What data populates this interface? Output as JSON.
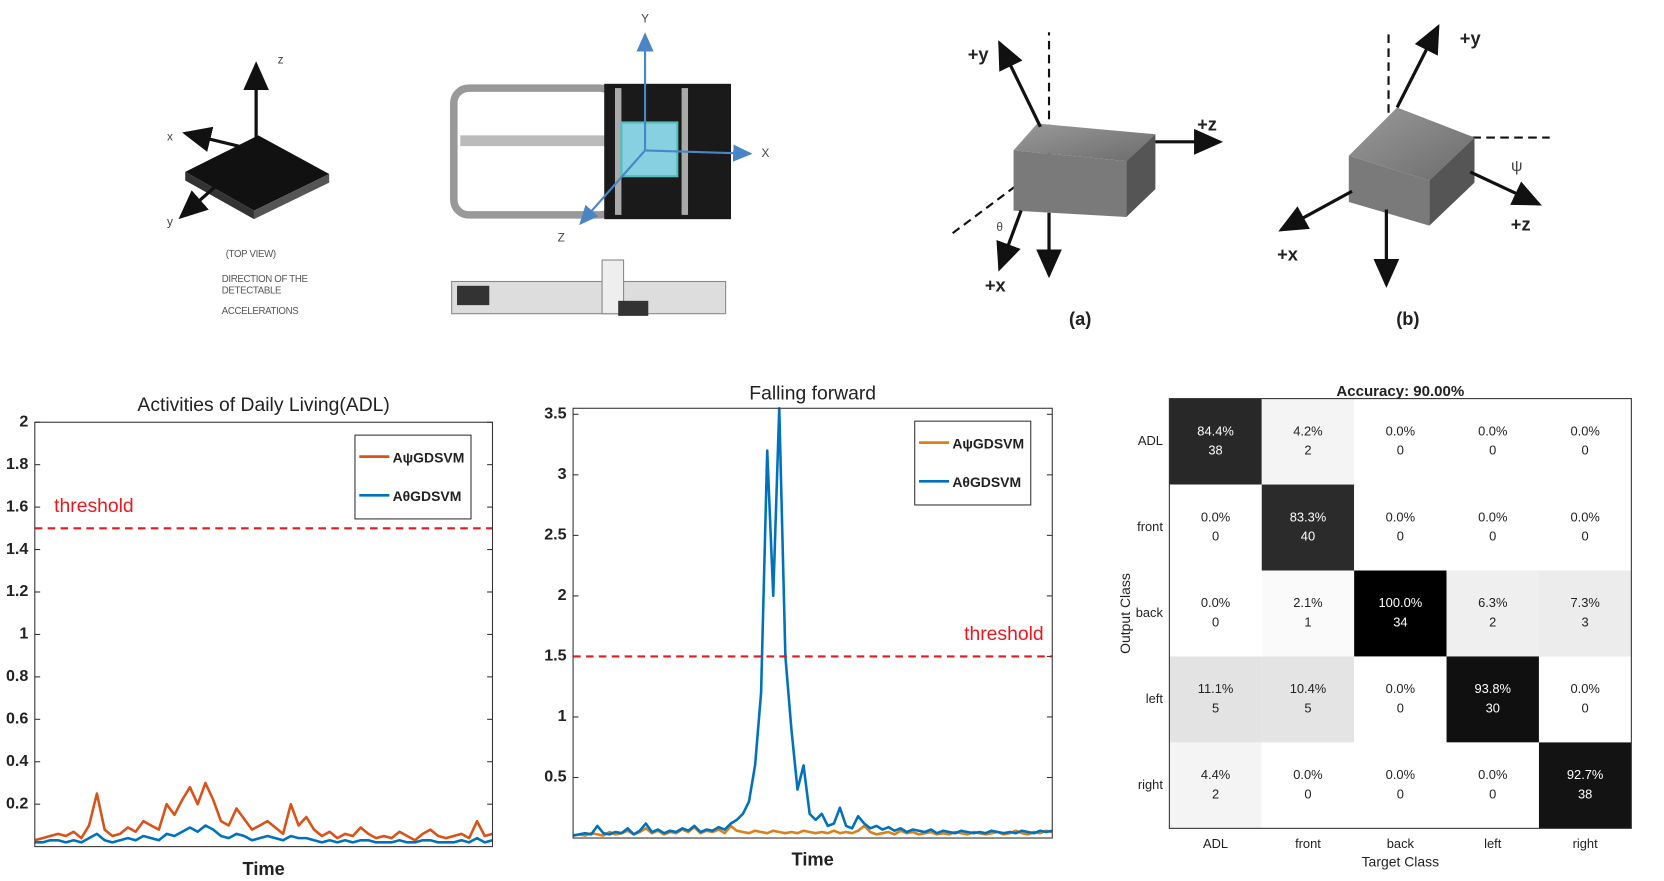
{
  "figures": {
    "chip": {
      "axes": [
        "z",
        "x",
        "y"
      ],
      "caption": [
        "(TOP VIEW)",
        "DIRECTION OF THE",
        "DETECTABLE",
        "ACCELERATIONS"
      ]
    },
    "buckle": {
      "axes": [
        "Y",
        "X",
        "Z"
      ]
    },
    "a": {
      "axes": [
        "+y",
        "+z",
        "+x"
      ],
      "angle": "θ",
      "label": "(a)"
    },
    "b": {
      "axes": [
        "+y",
        "+z",
        "+x"
      ],
      "angle": "ψ",
      "label": "(b)"
    }
  },
  "chart_data": [
    {
      "type": "line",
      "title": "Activities of Daily Living(ADL)",
      "xlabel": "Time",
      "ylim": [
        0,
        2
      ],
      "yticks": [
        0.2,
        0.4,
        0.6,
        0.8,
        1,
        1.2,
        1.4,
        1.6,
        1.8,
        2
      ],
      "threshold": {
        "value": 1.5,
        "label": "threshold"
      },
      "threshold_color": "#e8191d",
      "legend": "upper right",
      "grid": false,
      "series": [
        {
          "name": "AψGDSVM",
          "color": "#d95319",
          "values": [
            0.03,
            0.04,
            0.05,
            0.06,
            0.05,
            0.07,
            0.04,
            0.1,
            0.25,
            0.08,
            0.05,
            0.06,
            0.09,
            0.07,
            0.12,
            0.1,
            0.08,
            0.2,
            0.15,
            0.22,
            0.28,
            0.2,
            0.3,
            0.22,
            0.12,
            0.1,
            0.18,
            0.13,
            0.08,
            0.1,
            0.12,
            0.09,
            0.06,
            0.2,
            0.1,
            0.14,
            0.08,
            0.05,
            0.07,
            0.04,
            0.06,
            0.05,
            0.09,
            0.06,
            0.04,
            0.05,
            0.04,
            0.07,
            0.05,
            0.03,
            0.06,
            0.08,
            0.05,
            0.04,
            0.05,
            0.06,
            0.04,
            0.12,
            0.05,
            0.06
          ]
        },
        {
          "name": "AθGDSVM",
          "color": "#0072bd",
          "values": [
            0.02,
            0.02,
            0.03,
            0.03,
            0.02,
            0.03,
            0.02,
            0.04,
            0.06,
            0.03,
            0.02,
            0.03,
            0.04,
            0.03,
            0.05,
            0.04,
            0.03,
            0.06,
            0.05,
            0.07,
            0.09,
            0.07,
            0.1,
            0.08,
            0.05,
            0.04,
            0.06,
            0.05,
            0.03,
            0.04,
            0.05,
            0.04,
            0.03,
            0.05,
            0.04,
            0.04,
            0.03,
            0.02,
            0.03,
            0.02,
            0.03,
            0.02,
            0.03,
            0.03,
            0.02,
            0.02,
            0.02,
            0.03,
            0.02,
            0.02,
            0.03,
            0.03,
            0.02,
            0.02,
            0.02,
            0.03,
            0.02,
            0.04,
            0.02,
            0.03
          ]
        }
      ]
    },
    {
      "type": "line",
      "title": "Falling forward",
      "xlabel": "Time",
      "ylim": [
        0,
        3.55
      ],
      "yticks": [
        0.5,
        1,
        1.5,
        2,
        2.5,
        3,
        3.5
      ],
      "threshold": {
        "value": 1.5,
        "label": "threshold"
      },
      "threshold_color": "#e8191d",
      "legend": "upper right",
      "grid": false,
      "series": [
        {
          "name": "AψGDSVM",
          "color": "#d9821b",
          "values": [
            0.02,
            0.03,
            0.02,
            0.04,
            0.03,
            0.02,
            0.05,
            0.03,
            0.04,
            0.06,
            0.03,
            0.05,
            0.08,
            0.04,
            0.06,
            0.03,
            0.05,
            0.04,
            0.07,
            0.05,
            0.09,
            0.04,
            0.06,
            0.05,
            0.07,
            0.04,
            0.1,
            0.06,
            0.05,
            0.04,
            0.06,
            0.05,
            0.04,
            0.06,
            0.05,
            0.04,
            0.05,
            0.04,
            0.06,
            0.05,
            0.04,
            0.05,
            0.04,
            0.06,
            0.04,
            0.05,
            0.04,
            0.06,
            0.1,
            0.05,
            0.03,
            0.04,
            0.05,
            0.03,
            0.06,
            0.04,
            0.05,
            0.03,
            0.04,
            0.05,
            0.03,
            0.04,
            0.03,
            0.05,
            0.04,
            0.03,
            0.05,
            0.04,
            0.03,
            0.04,
            0.05,
            0.03,
            0.04,
            0.06,
            0.04,
            0.03,
            0.05,
            0.04,
            0.06,
            0.05
          ]
        },
        {
          "name": "AθGDSVM",
          "color": "#0072bd",
          "values": [
            0.02,
            0.03,
            0.04,
            0.03,
            0.1,
            0.04,
            0.03,
            0.05,
            0.04,
            0.08,
            0.03,
            0.06,
            0.12,
            0.05,
            0.07,
            0.04,
            0.06,
            0.05,
            0.08,
            0.06,
            0.1,
            0.05,
            0.07,
            0.06,
            0.09,
            0.07,
            0.12,
            0.15,
            0.2,
            0.3,
            0.6,
            1.2,
            3.2,
            2.0,
            3.55,
            1.5,
            0.9,
            0.4,
            0.6,
            0.2,
            0.15,
            0.2,
            0.1,
            0.12,
            0.25,
            0.1,
            0.08,
            0.18,
            0.12,
            0.08,
            0.1,
            0.07,
            0.09,
            0.06,
            0.08,
            0.05,
            0.07,
            0.06,
            0.05,
            0.07,
            0.04,
            0.06,
            0.05,
            0.04,
            0.06,
            0.05,
            0.04,
            0.05,
            0.04,
            0.06,
            0.05,
            0.04,
            0.05,
            0.04,
            0.06,
            0.05,
            0.04,
            0.06,
            0.05,
            0.06
          ]
        }
      ]
    },
    {
      "type": "heatmap",
      "title": "Accuracy: 90.00%",
      "xlabel": "Target Class",
      "ylabel": "Output Class",
      "x_categories": [
        "ADL",
        "front",
        "back",
        "left",
        "right"
      ],
      "y_categories": [
        "ADL",
        "front",
        "back",
        "left",
        "right"
      ],
      "values": [
        [
          84.4,
          4.2,
          0,
          0,
          0
        ],
        [
          0,
          83.3,
          0,
          0,
          0
        ],
        [
          0,
          2.1,
          100,
          6.3,
          7.3
        ],
        [
          11.1,
          10.4,
          0,
          93.8,
          0
        ],
        [
          4.4,
          0,
          0,
          0,
          92.7
        ]
      ],
      "value_labels": [
        [
          "84.4%",
          "4.2%",
          "0.0%",
          "0.0%",
          "0.0%"
        ],
        [
          "0.0%",
          "83.3%",
          "0.0%",
          "0.0%",
          "0.0%"
        ],
        [
          "0.0%",
          "2.1%",
          "100.0%",
          "6.3%",
          "7.3%"
        ],
        [
          "11.1%",
          "10.4%",
          "0.0%",
          "93.8%",
          "0.0%"
        ],
        [
          "4.4%",
          "0.0%",
          "0.0%",
          "0.0%",
          "92.7%"
        ]
      ],
      "counts": [
        [
          38,
          2,
          0,
          0,
          0
        ],
        [
          0,
          40,
          0,
          0,
          0
        ],
        [
          0,
          1,
          34,
          2,
          3
        ],
        [
          5,
          5,
          0,
          30,
          0
        ],
        [
          2,
          0,
          0,
          0,
          38
        ]
      ]
    }
  ]
}
